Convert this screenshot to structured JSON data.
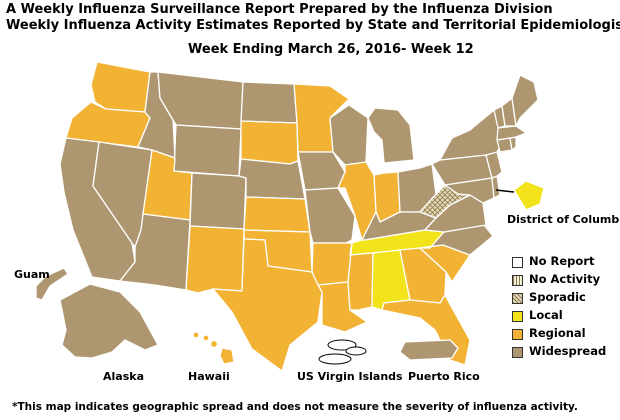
{
  "title_line1": "A Weekly Influenza Surveillance Report Prepared by the Influenza Division",
  "title_line2": "Weekly Influenza Activity Estimates Reported by State and Territorial Epidemiologists*",
  "week_line": "Week Ending March 26, 2016- Week 12",
  "footnote": "*This map indicates geographic spread and does not measure the severity of influenza activity.",
  "colors": {
    "no_report": "#ffffff",
    "no_activity": "#f6eed3",
    "sporadic": "#e6d9b0",
    "local": "#f2e31a",
    "regional": "#f2b233",
    "widespread": "#ad9670",
    "border": "#ffffff"
  },
  "legend": [
    {
      "label": "No Report",
      "level": "no_report"
    },
    {
      "label": "No Activity",
      "level": "no_activity"
    },
    {
      "label": "Sporadic",
      "level": "sporadic"
    },
    {
      "label": "Local",
      "level": "local"
    },
    {
      "label": "Regional",
      "level": "regional"
    },
    {
      "label": "Widespread",
      "level": "widespread"
    }
  ],
  "places": {
    "dc": "District of Columbia",
    "guam": "Guam",
    "alaska": "Alaska",
    "hawaii": "Hawaii",
    "usvi": "US Virgin Islands",
    "pr": "Puerto Rico"
  },
  "states": {
    "WA": "regional",
    "OR": "regional",
    "CA": "widespread",
    "NV": "widespread",
    "ID": "widespread",
    "MT": "widespread",
    "WY": "widespread",
    "UT": "regional",
    "AZ": "widespread",
    "CO": "widespread",
    "NM": "regional",
    "ND": "widespread",
    "SD": "regional",
    "NE": "widespread",
    "KS": "regional",
    "OK": "regional",
    "TX": "regional",
    "MN": "regional",
    "IA": "widespread",
    "MO": "widespread",
    "AR": "regional",
    "LA": "regional",
    "WI": "widespread",
    "IL": "regional",
    "MI": "widespread",
    "IN": "regional",
    "OH": "widespread",
    "KY": "widespread",
    "TN": "local",
    "MS": "regional",
    "AL": "local",
    "GA": "regional",
    "FL": "regional",
    "SC": "regional",
    "NC": "widespread",
    "VA": "widespread",
    "WV": "sporadic",
    "MD": "widespread",
    "DE": "widespread",
    "NJ": "widespread",
    "PA": "widespread",
    "NY": "widespread",
    "CT": "widespread",
    "RI": "widespread",
    "MA": "widespread",
    "VT": "widespread",
    "NH": "widespread",
    "ME": "widespread",
    "DC": "local",
    "AK": "widespread",
    "HI": "regional",
    "GU": "widespread",
    "VI": "no_report",
    "PR": "widespread"
  }
}
